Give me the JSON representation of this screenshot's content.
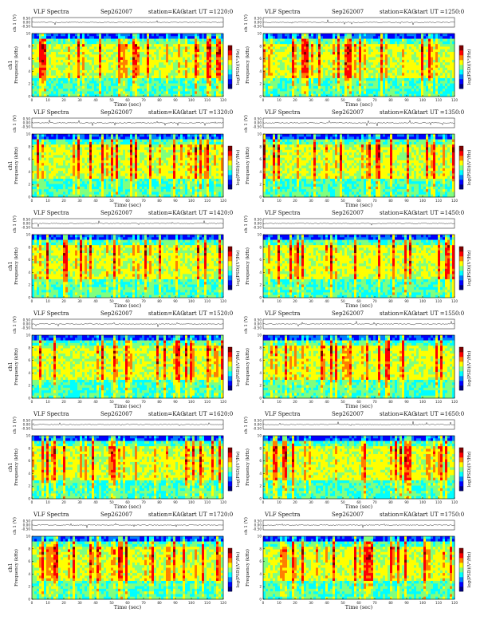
{
  "chart_data": [
    {
      "type": "heatmap",
      "title": "VLF Spectra",
      "date": "Sep262007",
      "station": "station=KAG",
      "start": "start  UT  =1220:0",
      "ylabel_top": "ch 1 (V)",
      "ylabel_main": "ch1",
      "ylabel_freq": "Frequency  (kHz)",
      "xlabel": "Time  (sec)",
      "colorbar_label": "log(PSD)(V²/Hz)",
      "xlim": [
        0,
        120
      ],
      "ylim": [
        0,
        10
      ],
      "x_ticks": [
        "0",
        "10",
        "20",
        "30",
        "40",
        "50",
        "60",
        "70",
        "80",
        "90",
        "100",
        "110",
        "120"
      ],
      "y_ticks": [
        "0",
        "2",
        "4",
        "6",
        "8",
        "10"
      ],
      "top_ticks": [
        "0.50",
        "0.00",
        "-0.50"
      ]
    },
    {
      "type": "heatmap",
      "title": "VLF Spectra",
      "date": "Sep262007",
      "station": "station=KAG",
      "start": "start  UT  =1250:0",
      "ylabel_top": "ch 1 (V)",
      "ylabel_main": "",
      "ylabel_freq": "Frequency  (kHz)",
      "xlabel": "Time  (sec)",
      "colorbar_label": "log(PSD)(V²/Hz)",
      "xlim": [
        0,
        120
      ],
      "ylim": [
        0,
        10
      ],
      "x_ticks": [
        "0",
        "10",
        "20",
        "30",
        "40",
        "50",
        "60",
        "70",
        "80",
        "90",
        "100",
        "110",
        "120"
      ],
      "y_ticks": [
        "0",
        "2",
        "4",
        "6",
        "8",
        "10"
      ],
      "top_ticks": [
        "0.50",
        "0.00",
        "-0.50"
      ]
    },
    {
      "type": "heatmap",
      "title": "VLF Spectra",
      "date": "Sep262007",
      "station": "station=KAG",
      "start": "start  UT  =1320:0",
      "ylabel_top": "ch 1 (V)",
      "ylabel_main": "ch1",
      "ylabel_freq": "Frequency  (kHz)",
      "xlabel": "Time  (sec)",
      "colorbar_label": "log(PSD)(V²/Hz)",
      "xlim": [
        0,
        120
      ],
      "ylim": [
        0,
        10
      ],
      "x_ticks": [
        "0",
        "10",
        "20",
        "30",
        "40",
        "50",
        "60",
        "70",
        "80",
        "90",
        "100",
        "110",
        "120"
      ],
      "y_ticks": [
        "0",
        "2",
        "4",
        "6",
        "8",
        "10"
      ],
      "top_ticks": [
        "0.50",
        "0.00",
        "-0.50"
      ]
    },
    {
      "type": "heatmap",
      "title": "VLF Spectra",
      "date": "Sep262007",
      "station": "station=KAG",
      "start": "start  UT  =1350:0",
      "ylabel_top": "ch 1 (V)",
      "ylabel_main": "",
      "ylabel_freq": "Frequency  (kHz)",
      "xlabel": "Time  (sec)",
      "colorbar_label": "log(PSD)(V²/Hz)",
      "xlim": [
        0,
        120
      ],
      "ylim": [
        0,
        10
      ],
      "x_ticks": [
        "0",
        "10",
        "20",
        "30",
        "40",
        "50",
        "60",
        "70",
        "80",
        "90",
        "100",
        "110",
        "120"
      ],
      "y_ticks": [
        "0",
        "2",
        "4",
        "6",
        "8",
        "10"
      ],
      "top_ticks": [
        "0.50",
        "0.00",
        "-0.50"
      ]
    },
    {
      "type": "heatmap",
      "title": "VLF Spectra",
      "date": "Sep262007",
      "station": "station=KAG",
      "start": "start  UT  =1420:0",
      "ylabel_top": "ch 1 (V)",
      "ylabel_main": "ch1",
      "ylabel_freq": "Frequency  (kHz)",
      "xlabel": "Time  (sec)",
      "colorbar_label": "log(PSD)(V²/Hz)",
      "xlim": [
        0,
        120
      ],
      "ylim": [
        0,
        10
      ],
      "x_ticks": [
        "0",
        "10",
        "20",
        "30",
        "40",
        "50",
        "60",
        "70",
        "80",
        "90",
        "100",
        "110",
        "120"
      ],
      "y_ticks": [
        "0",
        "2",
        "4",
        "6",
        "8",
        "10"
      ],
      "top_ticks": [
        "0.50",
        "0.00",
        "-0.50"
      ]
    },
    {
      "type": "heatmap",
      "title": "VLF Spectra",
      "date": "Sep262007",
      "station": "station=KAG",
      "start": "start  UT  =1450:0",
      "ylabel_top": "ch 1 (V)",
      "ylabel_main": "",
      "ylabel_freq": "Frequency  (kHz)",
      "xlabel": "Time  (sec)",
      "colorbar_label": "log(PSD)(V²/Hz)",
      "xlim": [
        0,
        120
      ],
      "ylim": [
        0,
        10
      ],
      "x_ticks": [
        "0",
        "10",
        "20",
        "30",
        "40",
        "50",
        "60",
        "70",
        "80",
        "90",
        "100",
        "110",
        "120"
      ],
      "y_ticks": [
        "0",
        "2",
        "4",
        "6",
        "8",
        "10"
      ],
      "top_ticks": [
        "0.50",
        "0.00",
        "-0.50"
      ]
    },
    {
      "type": "heatmap",
      "title": "VLF Spectra",
      "date": "Sep262007",
      "station": "station=KAG",
      "start": "start  UT  =1520:0",
      "ylabel_top": "ch 1 (V)",
      "ylabel_main": "ch1",
      "ylabel_freq": "Frequency  (kHz)",
      "xlabel": "Time  (sec)",
      "colorbar_label": "log(PSD)(V²/Hz)",
      "xlim": [
        0,
        120
      ],
      "ylim": [
        0,
        10
      ],
      "x_ticks": [
        "0",
        "10",
        "20",
        "30",
        "40",
        "50",
        "60",
        "70",
        "80",
        "90",
        "100",
        "110",
        "120"
      ],
      "y_ticks": [
        "0",
        "2",
        "4",
        "6",
        "8",
        "10"
      ],
      "top_ticks": [
        "0.50",
        "0.00",
        "-0.50"
      ]
    },
    {
      "type": "heatmap",
      "title": "VLF Spectra",
      "date": "Sep262007",
      "station": "station=KAG",
      "start": "start  UT  =1550:0",
      "ylabel_top": "ch 1 (V)",
      "ylabel_main": "",
      "ylabel_freq": "Frequency  (kHz)",
      "xlabel": "Time  (sec)",
      "colorbar_label": "log(PSD)(V²/Hz)",
      "xlim": [
        0,
        120
      ],
      "ylim": [
        0,
        10
      ],
      "x_ticks": [
        "0",
        "10",
        "20",
        "30",
        "40",
        "50",
        "60",
        "70",
        "80",
        "90",
        "100",
        "110",
        "120"
      ],
      "y_ticks": [
        "0",
        "2",
        "4",
        "6",
        "8",
        "10"
      ],
      "top_ticks": [
        "0.50",
        "0.00",
        "-0.50"
      ]
    },
    {
      "type": "heatmap",
      "title": "VLF Spectra",
      "date": "Sep262007",
      "station": "station=KAG",
      "start": "start  UT  =1620:0",
      "ylabel_top": "ch 1 (V)",
      "ylabel_main": "ch1",
      "ylabel_freq": "Frequency  (kHz)",
      "xlabel": "Time  (sec)",
      "colorbar_label": "log(PSD)(V²/Hz)",
      "xlim": [
        0,
        120
      ],
      "ylim": [
        0,
        10
      ],
      "x_ticks": [
        "0",
        "10",
        "20",
        "30",
        "40",
        "50",
        "60",
        "70",
        "80",
        "90",
        "100",
        "110",
        "120"
      ],
      "y_ticks": [
        "0",
        "2",
        "4",
        "6",
        "8",
        "10"
      ],
      "top_ticks": [
        "0.50",
        "0.00",
        "-0.50"
      ]
    },
    {
      "type": "heatmap",
      "title": "VLF Spectra",
      "date": "Sep262007",
      "station": "station=KAG",
      "start": "start  UT  =1650:0",
      "ylabel_top": "ch 1 (V)",
      "ylabel_main": "",
      "ylabel_freq": "Frequency  (kHz)",
      "xlabel": "Time  (sec)",
      "colorbar_label": "log(PSD)(V²/Hz)",
      "xlim": [
        0,
        120
      ],
      "ylim": [
        0,
        10
      ],
      "x_ticks": [
        "0",
        "10",
        "20",
        "30",
        "40",
        "50",
        "60",
        "70",
        "80",
        "90",
        "100",
        "110",
        "120"
      ],
      "y_ticks": [
        "0",
        "2",
        "4",
        "6",
        "8",
        "10"
      ],
      "top_ticks": [
        "0.50",
        "0.00",
        "-0.50"
      ]
    },
    {
      "type": "heatmap",
      "title": "VLF Spectra",
      "date": "Sep262007",
      "station": "station=KAG",
      "start": "start  UT  =1720:0",
      "ylabel_top": "ch 1 (V)",
      "ylabel_main": "ch1",
      "ylabel_freq": "Frequency  (kHz)",
      "xlabel": "Time  (sec)",
      "colorbar_label": "log(PSD)(V²/Hz)",
      "xlim": [
        0,
        120
      ],
      "ylim": [
        0,
        10
      ],
      "x_ticks": [
        "0",
        "10",
        "20",
        "30",
        "40",
        "50",
        "60",
        "70",
        "80",
        "90",
        "100",
        "110",
        "120"
      ],
      "y_ticks": [
        "0",
        "2",
        "4",
        "6",
        "8",
        "10"
      ],
      "top_ticks": [
        "0.50",
        "0.00",
        "-0.50"
      ]
    },
    {
      "type": "heatmap",
      "title": "VLF Spectra",
      "date": "Sep262007",
      "station": "station=KAG",
      "start": "start  UT  =1750:0",
      "ylabel_top": "ch 1 (V)",
      "ylabel_main": "",
      "ylabel_freq": "Frequency  (kHz)",
      "xlabel": "Time  (sec)",
      "colorbar_label": "log(PSD)(V²/Hz)",
      "xlim": [
        0,
        120
      ],
      "ylim": [
        0,
        10
      ],
      "x_ticks": [
        "0",
        "10",
        "20",
        "30",
        "40",
        "50",
        "60",
        "70",
        "80",
        "90",
        "100",
        "110",
        "120"
      ],
      "y_ticks": [
        "0",
        "2",
        "4",
        "6",
        "8",
        "10"
      ],
      "top_ticks": [
        "0.50",
        "0.00",
        "-0.50"
      ]
    }
  ],
  "colormap": [
    "#00007f",
    "#0000ff",
    "#007fff",
    "#00ffff",
    "#7fff7f",
    "#ffff00",
    "#ff7f00",
    "#ff0000",
    "#7f0000"
  ]
}
